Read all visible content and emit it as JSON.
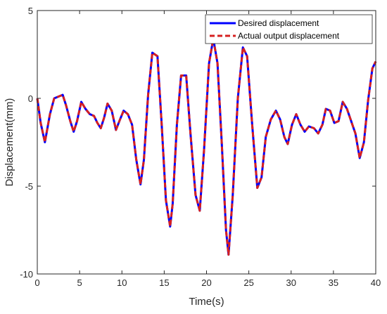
{
  "chart_data": {
    "type": "line",
    "title": "",
    "xlabel": "Time(s)",
    "ylabel": "Displacement(mm)",
    "xlim": [
      0,
      40
    ],
    "ylim": [
      -10,
      5
    ],
    "xticks": [
      0,
      5,
      10,
      15,
      20,
      25,
      30,
      35,
      40
    ],
    "yticks": [
      -10,
      -5,
      0,
      5
    ],
    "grid": false,
    "legend_position": "top-right",
    "series": [
      {
        "name": "Desired displacement",
        "color": "#0000ff",
        "style": "solid",
        "x": [
          0,
          0.4,
          0.9,
          1.5,
          2.0,
          2.5,
          3.0,
          3.4,
          3.9,
          4.3,
          4.7,
          5.2,
          5.7,
          6.2,
          6.7,
          7.1,
          7.5,
          7.9,
          8.3,
          8.8,
          9.3,
          9.7,
          10.2,
          10.7,
          11.2,
          11.7,
          12.2,
          12.6,
          13.1,
          13.6,
          14.2,
          14.7,
          15.2,
          15.7,
          16.0,
          16.5,
          17.0,
          17.6,
          18.1,
          18.7,
          19.2,
          19.7,
          20.3,
          20.8,
          21.3,
          21.8,
          22.3,
          22.6,
          23.1,
          23.7,
          24.3,
          24.8,
          25.4,
          26.0,
          26.5,
          27.0,
          27.6,
          28.2,
          28.7,
          29.2,
          29.6,
          30.1,
          30.6,
          31.1,
          31.6,
          32.1,
          32.7,
          33.2,
          33.7,
          34.1,
          34.6,
          35.1,
          35.6,
          36.1,
          36.6,
          37.1,
          37.6,
          38.1,
          38.6,
          39.1,
          39.6,
          40.0
        ],
        "y": [
          0.0,
          -1.4,
          -2.5,
          -0.9,
          0.0,
          0.1,
          0.2,
          -0.4,
          -1.3,
          -1.9,
          -1.3,
          -0.2,
          -0.6,
          -0.9,
          -1.0,
          -1.4,
          -1.7,
          -1.1,
          -0.3,
          -0.7,
          -1.8,
          -1.3,
          -0.7,
          -0.9,
          -1.5,
          -3.5,
          -4.9,
          -3.5,
          0.2,
          2.6,
          2.4,
          -1.5,
          -5.8,
          -7.3,
          -6.0,
          -1.5,
          1.3,
          1.3,
          -2.0,
          -5.5,
          -6.4,
          -3.0,
          2.0,
          3.4,
          2.0,
          -2.5,
          -7.5,
          -8.9,
          -5.5,
          0.0,
          2.9,
          2.4,
          -1.5,
          -5.1,
          -4.5,
          -2.2,
          -1.2,
          -0.7,
          -1.2,
          -2.2,
          -2.6,
          -1.5,
          -0.9,
          -1.5,
          -1.9,
          -1.6,
          -1.7,
          -2.0,
          -1.5,
          -0.6,
          -0.7,
          -1.4,
          -1.3,
          -0.2,
          -0.6,
          -1.3,
          -2.0,
          -3.4,
          -2.5,
          -0.1,
          1.7,
          2.1
        ]
      },
      {
        "name": "Actual output displacement",
        "color": "#d62020",
        "style": "dashed",
        "x": [
          0,
          0.4,
          0.9,
          1.5,
          2.0,
          2.5,
          3.0,
          3.4,
          3.9,
          4.3,
          4.7,
          5.2,
          5.7,
          6.2,
          6.7,
          7.1,
          7.5,
          7.9,
          8.3,
          8.8,
          9.3,
          9.7,
          10.2,
          10.7,
          11.2,
          11.7,
          12.2,
          12.6,
          13.1,
          13.6,
          14.2,
          14.7,
          15.2,
          15.7,
          16.0,
          16.5,
          17.0,
          17.6,
          18.1,
          18.7,
          19.2,
          19.7,
          20.3,
          20.8,
          21.3,
          21.8,
          22.3,
          22.6,
          23.1,
          23.7,
          24.3,
          24.8,
          25.4,
          26.0,
          26.5,
          27.0,
          27.6,
          28.2,
          28.7,
          29.2,
          29.6,
          30.1,
          30.6,
          31.1,
          31.6,
          32.1,
          32.7,
          33.2,
          33.7,
          34.1,
          34.6,
          35.1,
          35.6,
          36.1,
          36.6,
          37.1,
          37.6,
          38.1,
          38.6,
          39.1,
          39.6,
          40.0
        ],
        "y": [
          0.0,
          -1.4,
          -2.5,
          -0.9,
          0.0,
          0.1,
          0.2,
          -0.4,
          -1.3,
          -1.9,
          -1.3,
          -0.2,
          -0.6,
          -0.9,
          -1.0,
          -1.4,
          -1.7,
          -1.1,
          -0.3,
          -0.7,
          -1.8,
          -1.3,
          -0.7,
          -0.9,
          -1.5,
          -3.5,
          -4.9,
          -3.5,
          0.2,
          2.6,
          2.4,
          -1.5,
          -5.8,
          -7.3,
          -6.0,
          -1.5,
          1.3,
          1.3,
          -2.0,
          -5.5,
          -6.4,
          -3.0,
          2.0,
          3.4,
          2.0,
          -2.5,
          -7.5,
          -8.9,
          -5.5,
          0.0,
          2.9,
          2.4,
          -1.5,
          -5.1,
          -4.5,
          -2.2,
          -1.2,
          -0.7,
          -1.2,
          -2.2,
          -2.6,
          -1.5,
          -0.9,
          -1.5,
          -1.9,
          -1.6,
          -1.7,
          -2.0,
          -1.5,
          -0.6,
          -0.7,
          -1.4,
          -1.3,
          -0.2,
          -0.6,
          -1.3,
          -2.0,
          -3.4,
          -2.5,
          -0.1,
          1.7,
          2.1
        ]
      }
    ]
  }
}
